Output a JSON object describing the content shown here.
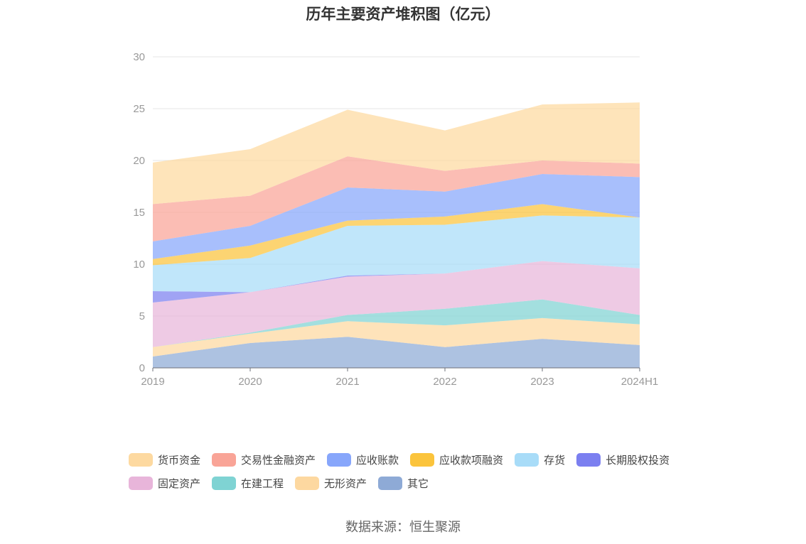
{
  "chart_data": {
    "type": "area",
    "title": "历年主要资产堆积图（亿元）",
    "categories": [
      "2019",
      "2020",
      "2021",
      "2022",
      "2023",
      "2024H1"
    ],
    "ylim": [
      0,
      30
    ],
    "yticks": [
      0,
      5,
      10,
      15,
      20,
      25,
      30
    ],
    "grid": true,
    "legend_position": "bottom",
    "series": [
      {
        "name": "其它",
        "color": "#8eaad6",
        "values": [
          1.1,
          2.4,
          3.0,
          2.0,
          2.8,
          2.2
        ]
      },
      {
        "name": "无形资产",
        "color": "#fdd8a0",
        "values": [
          0.9,
          0.9,
          1.5,
          2.1,
          2.0,
          2.0
        ]
      },
      {
        "name": "在建工程",
        "color": "#7fd3d3",
        "values": [
          0.0,
          0.1,
          0.6,
          1.6,
          1.8,
          0.9
        ]
      },
      {
        "name": "固定资产",
        "color": "#e8b5da",
        "values": [
          4.3,
          3.9,
          3.7,
          3.4,
          3.7,
          4.5
        ]
      },
      {
        "name": "长期股权投资",
        "color": "#7b7ff0",
        "values": [
          1.1,
          0.0,
          0.1,
          0.0,
          0.0,
          0.0
        ]
      },
      {
        "name": "存货",
        "color": "#a8dcf8",
        "values": [
          2.5,
          3.3,
          4.8,
          4.7,
          4.4,
          4.9
        ]
      },
      {
        "name": "应收款项融资",
        "color": "#fbc43c",
        "values": [
          0.6,
          1.2,
          0.5,
          0.8,
          1.1,
          0.0
        ]
      },
      {
        "name": "应收账款",
        "color": "#87a6fb",
        "values": [
          1.7,
          1.9,
          3.2,
          2.4,
          2.9,
          3.9
        ]
      },
      {
        "name": "交易性金融资产",
        "color": "#f9a497",
        "values": [
          3.6,
          2.9,
          3.0,
          2.0,
          1.3,
          1.3
        ]
      },
      {
        "name": "货币资金",
        "color": "#fdd9a0",
        "values": [
          4.0,
          4.5,
          4.5,
          3.9,
          5.4,
          5.9
        ]
      }
    ]
  },
  "legend": [
    {
      "name": "货币资金",
      "color": "#fdd9a0"
    },
    {
      "name": "交易性金融资产",
      "color": "#f9a497"
    },
    {
      "name": "应收账款",
      "color": "#87a6fb"
    },
    {
      "name": "应收款项融资",
      "color": "#fbc43c"
    },
    {
      "name": "存货",
      "color": "#a8dcf8"
    },
    {
      "name": "长期股权投资",
      "color": "#7b7ff0"
    },
    {
      "name": "固定资产",
      "color": "#e8b5da"
    },
    {
      "name": "在建工程",
      "color": "#7fd3d3"
    },
    {
      "name": "无形资产",
      "color": "#fdd8a0"
    },
    {
      "name": "其它",
      "color": "#8eaad6"
    }
  ],
  "source": "数据来源：恒生聚源"
}
